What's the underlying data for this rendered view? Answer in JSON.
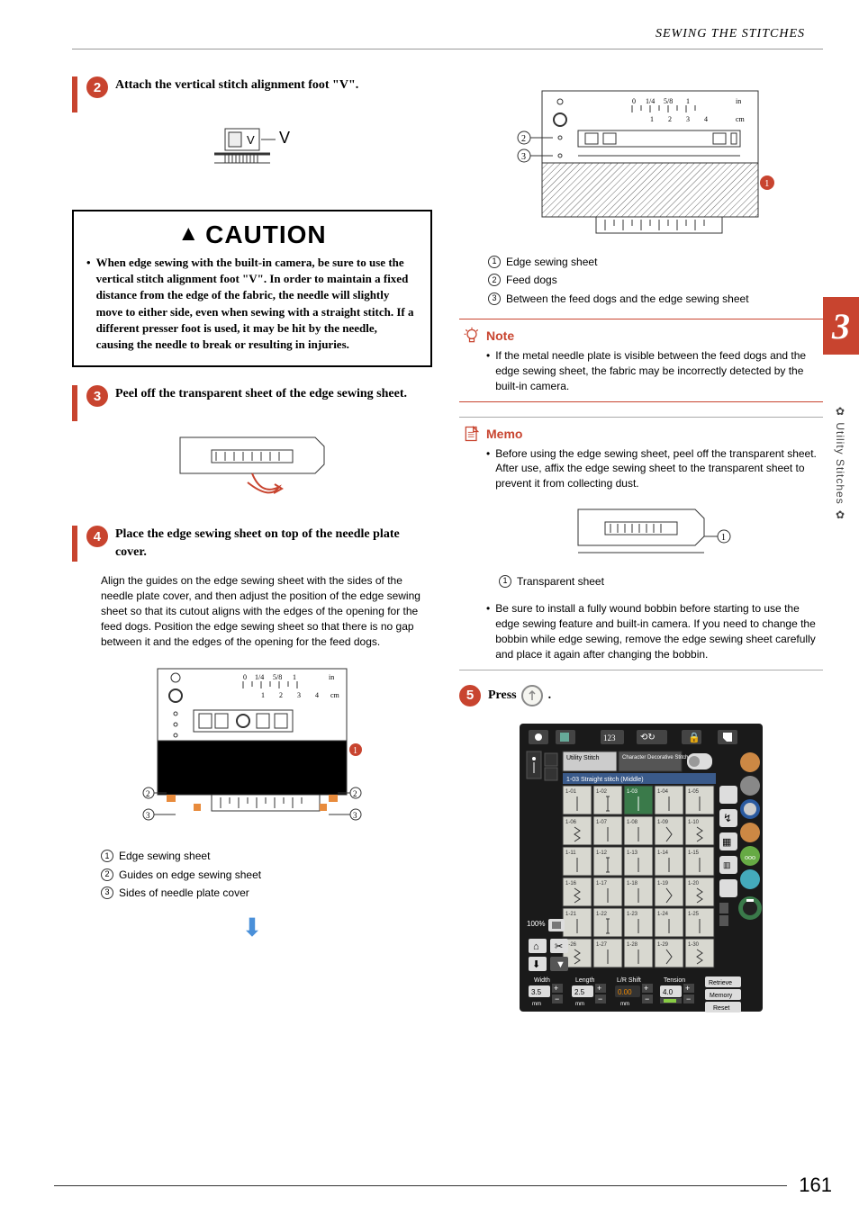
{
  "header": {
    "section": "SEWING THE STITCHES"
  },
  "sideTab": {
    "number": "3",
    "label": "Utility Stitches"
  },
  "pageNumber": "161",
  "steps": {
    "s2": {
      "num": "2",
      "text": "Attach the vertical stitch alignment foot \"V\"."
    },
    "s3": {
      "num": "3",
      "text": "Peel off the transparent sheet of the edge sewing sheet."
    },
    "s4": {
      "num": "4",
      "text": "Place the edge sewing sheet on top of the needle plate cover.",
      "body": "Align the guides on the edge sewing sheet with the sides of the needle plate cover, and then adjust the position of the edge sewing sheet so that its cutout aligns with the edges of the opening for the feed dogs. Position the edge sewing sheet so that there is no gap between it and the edges of the opening for the feed dogs."
    },
    "s5": {
      "num": "5",
      "text": "Press",
      "suffix": "."
    }
  },
  "caution": {
    "title": "CAUTION",
    "body": "When edge sewing with the built-in camera, be sure to use the vertical stitch alignment foot \"V\". In order to maintain a fixed distance from the edge of the fabric, the needle will slightly move to either side, even when sewing with a straight stitch. If a different presser foot is used, it may be hit by the needle, causing the needle to break or resulting in injuries."
  },
  "legendLeft": {
    "1": "Edge sewing sheet",
    "2": "Guides on edge sewing sheet",
    "3": "Sides of needle plate cover"
  },
  "legendRight": {
    "1": "Edge sewing sheet",
    "2": "Feed dogs",
    "3": "Between the feed dogs and the edge sewing sheet"
  },
  "legendMemo": {
    "1": "Transparent sheet"
  },
  "note": {
    "title": "Note",
    "body": "If the metal needle plate is visible between the feed dogs and the edge sewing sheet, the fabric may be incorrectly detected by the built-in camera."
  },
  "memo": {
    "title": "Memo",
    "body1": "Before using the edge sewing sheet, peel off the transparent sheet. After use, affix the edge sewing sheet to the transparent sheet to prevent it from collecting dust.",
    "body2": "Be sure to install a fully wound bobbin before starting to use the edge sewing feature and built-in camera. If you need to change the bobbin while edge sewing, remove the edge sewing sheet carefully and place it again after changing the bobbin."
  },
  "footLabel": "V",
  "rulerMarks": {
    "q": "1/4",
    "f": "5/8",
    "cm": "cm",
    "in": "in"
  },
  "screen": {
    "tabs": {
      "utility": "Utility Stitch",
      "char": "Character Decorative Stitch"
    },
    "subtitle": "1-03 Straight stitch (Middle)",
    "zoom": "100%",
    "width": {
      "label": "Width",
      "val": "3.5",
      "unit": "mm"
    },
    "length": {
      "label": "Length",
      "val": "2.5",
      "unit": "mm"
    },
    "shift": {
      "label": "L/R Shift",
      "val": "0.00",
      "unit": "mm"
    },
    "tension": {
      "label": "Tension",
      "val": "4.0"
    },
    "retrieve": "Retrieve",
    "memory": "Memory",
    "reset": "Reset",
    "stitches": [
      "1-01",
      "1-02",
      "1-03",
      "1-04",
      "1-05",
      "1-06",
      "1-07",
      "1-08",
      "1-09",
      "1-10",
      "1-11",
      "1-12",
      "1-13",
      "1-14",
      "1-15",
      "1-16",
      "1-17",
      "1-18",
      "1-19",
      "1-20",
      "1-21",
      "1-22",
      "1-23",
      "1-24",
      "1-25",
      "1-26",
      "1-27",
      "1-28",
      "1-29",
      "1-30"
    ]
  }
}
